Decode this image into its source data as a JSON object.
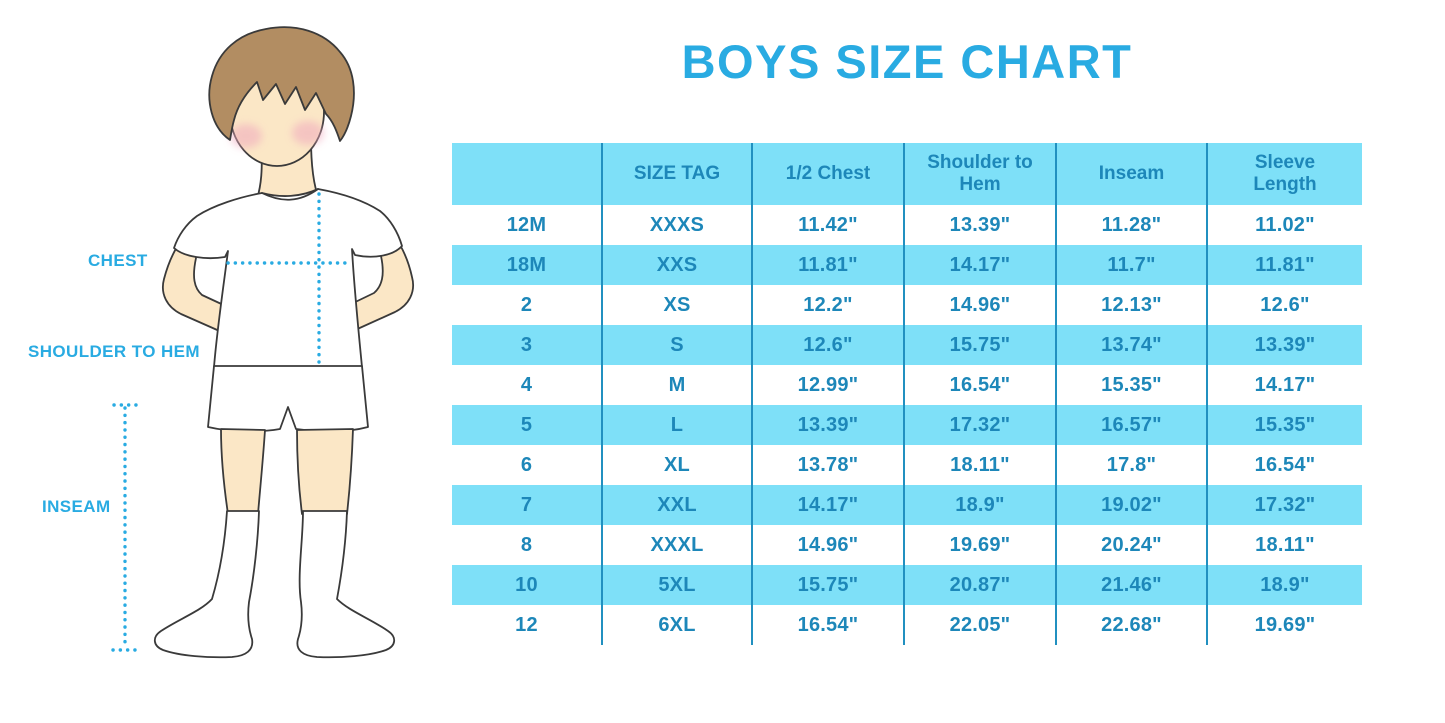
{
  "title": "BOYS SIZE CHART",
  "colors": {
    "accent": "#29ABE2",
    "rowfill": "#7EE0F8",
    "divider": "#2190C0",
    "tabletext": "#1D87B9",
    "skin": "#FBE7C6",
    "hair": "#B28D62",
    "blush": "#F0A9BE",
    "outline": "#3A3A3A"
  },
  "figure": {
    "labels": {
      "chest": "CHEST",
      "shoulder_to_hem": "SHOULDER TO HEM",
      "inseam": "INSEAM"
    }
  },
  "table": {
    "headers": [
      "",
      "SIZE TAG",
      "1/2 Chest",
      "Shoulder to Hem",
      "Inseam",
      "Sleeve Length"
    ],
    "rows": [
      [
        "12M",
        "XXXS",
        "11.42\"",
        "13.39\"",
        "11.28\"",
        "11.02\""
      ],
      [
        "18M",
        "XXS",
        "11.81\"",
        "14.17\"",
        "11.7\"",
        "11.81\""
      ],
      [
        "2",
        "XS",
        "12.2\"",
        "14.96\"",
        "12.13\"",
        "12.6\""
      ],
      [
        "3",
        "S",
        "12.6\"",
        "15.75\"",
        "13.74\"",
        "13.39\""
      ],
      [
        "4",
        "M",
        "12.99\"",
        "16.54\"",
        "15.35\"",
        "14.17\""
      ],
      [
        "5",
        "L",
        "13.39\"",
        "17.32\"",
        "16.57\"",
        "15.35\""
      ],
      [
        "6",
        "XL",
        "13.78\"",
        "18.11\"",
        "17.8\"",
        "16.54\""
      ],
      [
        "7",
        "XXL",
        "14.17\"",
        "18.9\"",
        "19.02\"",
        "17.32\""
      ],
      [
        "8",
        "XXXL",
        "14.96\"",
        "19.69\"",
        "20.24\"",
        "18.11\""
      ],
      [
        "10",
        "5XL",
        "15.75\"",
        "20.87\"",
        "21.46\"",
        "18.9\""
      ],
      [
        "12",
        "6XL",
        "16.54\"",
        "22.05\"",
        "22.68\"",
        "19.69\""
      ]
    ]
  }
}
